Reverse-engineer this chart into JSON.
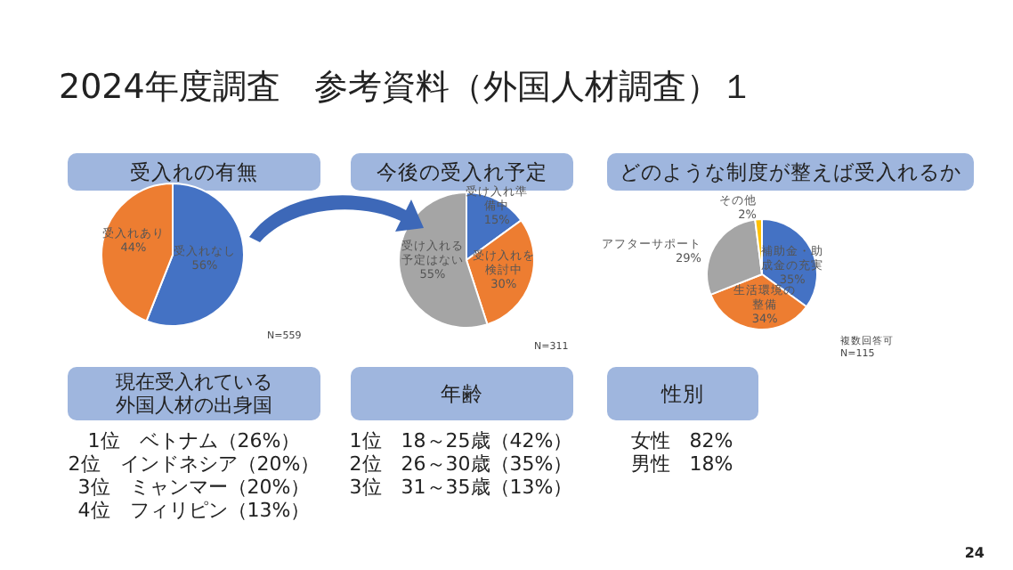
{
  "chart_data": [
    {
      "type": "other",
      "title": "2024年度調査　参考資料（外国人材調査）１",
      "annotations": [
        "24"
      ]
    },
    {
      "type": "pie",
      "title": "受入れの有無",
      "categories": [
        "受入れなし",
        "受入れあり"
      ],
      "values": [
        56,
        44
      ],
      "colors": [
        "#4472c4",
        "#ed7d31"
      ],
      "value_labels": [
        "56%",
        "44%"
      ],
      "annotations": [
        "N=559"
      ]
    },
    {
      "type": "pie",
      "title": "今後の受入れ予定",
      "categories": [
        "受け入れ準備中",
        "受け入れを検討中",
        "受け入れる予定はない"
      ],
      "values": [
        15,
        30,
        55
      ],
      "colors": [
        "#4472c4",
        "#ed7d31",
        "#a5a5a5"
      ],
      "value_labels": [
        "15%",
        "30%",
        "55%"
      ],
      "annotations": [
        "N=311"
      ]
    },
    {
      "type": "pie",
      "title": "どのような制度が整えば受入れるか",
      "categories": [
        "補助金・助成金の充実",
        "生活環境の整備",
        "アフターサポート",
        "その他"
      ],
      "values": [
        35,
        34,
        29,
        2
      ],
      "colors": [
        "#4472c4",
        "#ed7d31",
        "#a5a5a5",
        "#ffc000"
      ],
      "value_labels": [
        "35%",
        "34%",
        "29%",
        "2%"
      ],
      "annotations": [
        "複数回答可",
        "N=115"
      ]
    },
    {
      "type": "other",
      "title": "現在受入れている外国人材の出身国",
      "annotations": [
        "1位　ベトナム（26%）",
        "2位　インドネシア（20%）",
        "3位　ミャンマー（20%）",
        "4位　フィリピン（13%）"
      ]
    },
    {
      "type": "other",
      "title": "年齢",
      "annotations": [
        "1位　18～25歳（42%）",
        "2位　26～30歳（35%）",
        "3位　31～35歳（13%）"
      ]
    },
    {
      "type": "other",
      "title": "性別",
      "annotations": [
        "女性　82%",
        "男性　18%"
      ]
    }
  ]
}
